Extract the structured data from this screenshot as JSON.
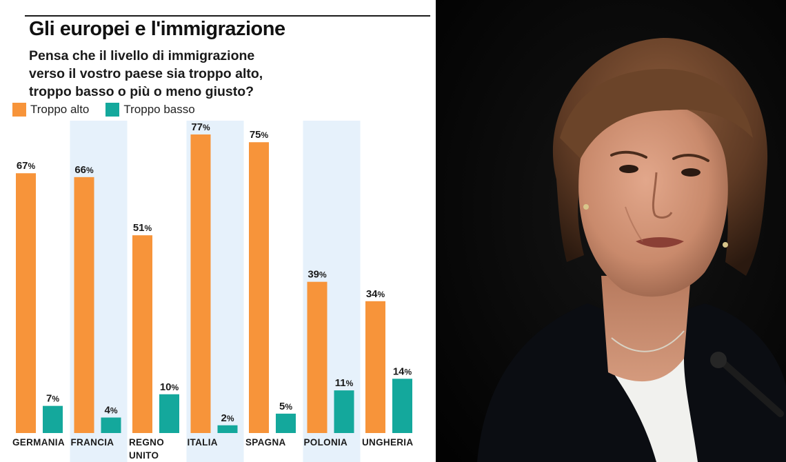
{
  "title": "Gli europei e l'immigrazione",
  "subtitle_lines": [
    "Pensa che il livello di immigrazione",
    "verso il vostro paese sia troppo alto,",
    "troppo basso o più o meno giusto?"
  ],
  "legend": [
    {
      "label": "Troppo alto",
      "color": "#f7943a"
    },
    {
      "label": "Troppo basso",
      "color": "#14a89c"
    }
  ],
  "colors": {
    "highlight_band": "#e6f1fb",
    "value_text": "#1a1a1a"
  },
  "chart_data": {
    "type": "bar",
    "categories": [
      "GERMANIA",
      "FRANCIA",
      "REGNO UNITO",
      "ITALIA",
      "SPAGNA",
      "POLONIA",
      "UNGHERIA"
    ],
    "category_lines": [
      [
        "GERMANIA"
      ],
      [
        "FRANCIA"
      ],
      [
        "REGNO",
        "UNITO"
      ],
      [
        "ITALIA"
      ],
      [
        "SPAGNA"
      ],
      [
        "POLONIA"
      ],
      [
        "UNGHERIA"
      ]
    ],
    "highlighted": [
      false,
      true,
      false,
      true,
      false,
      true,
      false
    ],
    "series": [
      {
        "name": "Troppo alto",
        "values": [
          67,
          66,
          51,
          77,
          75,
          39,
          34
        ],
        "color": "#f7943a"
      },
      {
        "name": "Troppo basso",
        "values": [
          7,
          4,
          10,
          2,
          5,
          11,
          14
        ],
        "color": "#14a89c"
      }
    ],
    "value_suffix": "%",
    "ylim": [
      0,
      80
    ],
    "grid": false
  },
  "photo": {
    "icon": "portrait-photo",
    "background": "#050505"
  }
}
